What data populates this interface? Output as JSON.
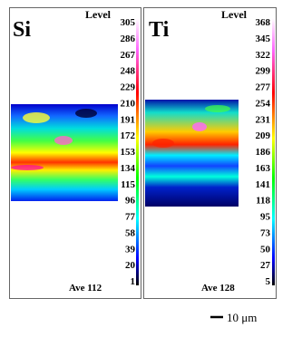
{
  "panels": [
    {
      "element": "Si",
      "level_label": "Level",
      "scale": [
        "305",
        "286",
        "267",
        "248",
        "229",
        "210",
        "191",
        "172",
        "153",
        "134",
        "115",
        "96",
        "77",
        "58",
        "39",
        "20",
        "1"
      ],
      "average": "Ave 112"
    },
    {
      "element": "Ti",
      "level_label": "Level",
      "scale": [
        "368",
        "345",
        "322",
        "299",
        "277",
        "254",
        "231",
        "209",
        "186",
        "163",
        "141",
        "118",
        "95",
        "73",
        "50",
        "27",
        "5"
      ],
      "average": "Ave 128"
    }
  ],
  "scale_bar": "10 μm"
}
